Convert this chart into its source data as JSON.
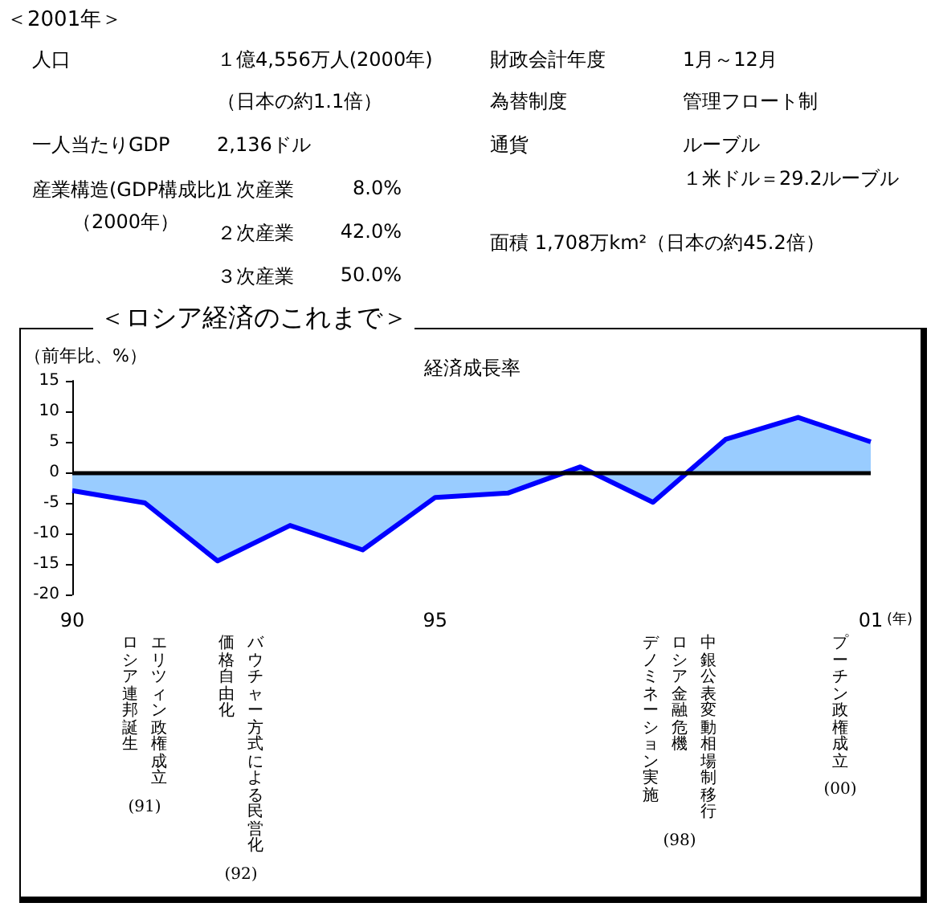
{
  "chart_data": [
    {
      "type": "other",
      "title": "＜2001年＞",
      "annotations": [
        "人口",
        "１億4,556万人(2000年)",
        "（日本の約1.1倍）",
        "一人当たりGDP",
        "2,136ドル",
        "産業構造(GDP構成比)",
        "（2000年）",
        "１次産業",
        "8.0%",
        "２次産業",
        "42.0%",
        "３次産業",
        "50.0%",
        "財政会計年度",
        "1月～12月",
        "為替制度",
        "管理フロート制",
        "通貨",
        "ルーブル",
        "１米ドル＝29.2ルーブル",
        "面積 1,708万km²（日本の約45.2倍）"
      ]
    },
    {
      "type": "area",
      "title": "＜ロシア経済のこれまで＞",
      "subtitle": "経済成長率",
      "ylabel": "（前年比、%）",
      "xlabel": "(年)",
      "x": [
        1990,
        1991,
        1992,
        1993,
        1994,
        1995,
        1996,
        1997,
        1998,
        1999,
        2000,
        2001
      ],
      "series": [
        {
          "color": "#0000ff",
          "values": [
            -3,
            -5,
            -14.5,
            -8.7,
            -12.7,
            -4.1,
            -3.4,
            0.9,
            -4.9,
            5.4,
            9,
            5
          ]
        }
      ],
      "xlim": [
        1990,
        2001
      ],
      "xticks": [
        {
          "value": 1990,
          "label": "90"
        },
        {
          "value": 1995,
          "label": "95"
        },
        {
          "value": 2001,
          "label": "01"
        }
      ],
      "ylim": [
        -20,
        15
      ],
      "yticks": [
        -20,
        -15,
        -10,
        -5,
        0,
        5,
        10,
        15
      ],
      "marker": "none",
      "ref_lines": [
        {
          "axis": "y",
          "value": 0,
          "color": "#000000"
        }
      ],
      "annotations": [
        "エリツィン政権成立",
        "ロシア連邦誕生",
        "(91)",
        "バウチャー方式による民営化",
        "価格自由化",
        "(92)",
        "中銀公表変動相場制移行",
        "ロシア金融危機",
        "デノミネーション実施",
        "(98)",
        "プーチン政権成立",
        "(00)"
      ]
    }
  ]
}
